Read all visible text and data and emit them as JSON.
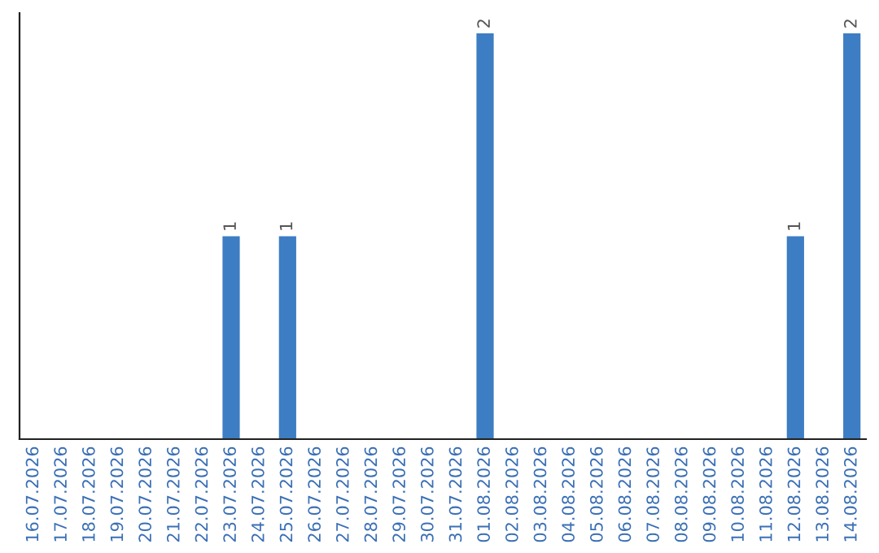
{
  "chart_data": {
    "type": "bar",
    "categories": [
      "16.07.2026",
      "17.07.2026",
      "18.07.2026",
      "19.07.2026",
      "20.07.2026",
      "21.07.2026",
      "22.07.2026",
      "23.07.2026",
      "24.07.2026",
      "25.07.2026",
      "26.07.2026",
      "27.07.2026",
      "28.07.2026",
      "29.07.2026",
      "30.07.2026",
      "31.07.2026",
      "01.08.2026",
      "02.08.2026",
      "03.08.2026",
      "04.08.2026",
      "05.08.2026",
      "06.08.2026",
      "07.08.2026",
      "08.08.2026",
      "09.08.2026",
      "10.08.2026",
      "11.08.2026",
      "12.08.2026",
      "13.08.2026",
      "14.08.2026"
    ],
    "values": [
      0,
      0,
      0,
      0,
      0,
      0,
      0,
      1,
      0,
      1,
      0,
      0,
      0,
      0,
      0,
      0,
      2,
      0,
      0,
      0,
      0,
      0,
      0,
      0,
      0,
      0,
      0,
      1,
      0,
      2
    ],
    "color": "#3d7dc3",
    "value_labels": [
      null,
      null,
      null,
      null,
      null,
      null,
      null,
      "1",
      null,
      "1",
      null,
      null,
      null,
      null,
      null,
      null,
      "2",
      null,
      null,
      null,
      null,
      null,
      null,
      null,
      null,
      null,
      null,
      "1",
      null,
      "2"
    ],
    "tick_labels": "x",
    "grid": false,
    "legend": false
  }
}
